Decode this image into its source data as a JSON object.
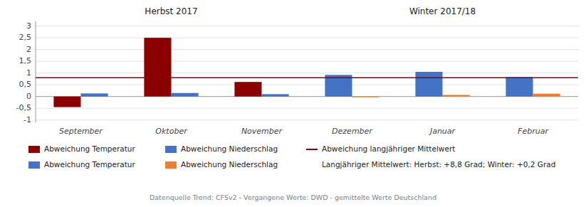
{
  "chart_data": {
    "type": "bar",
    "categories": [
      "September",
      "Oktober",
      "November",
      "Dezember",
      "Januar",
      "Februar"
    ],
    "series": [
      {
        "name": "Abweichung Temperatur",
        "values": [
          -0.45,
          2.5,
          0.62,
          0.92,
          1.05,
          0.83
        ],
        "colors": [
          "#8B0000",
          "#8B0000",
          "#8B0000",
          "#4472C4",
          "#4472C4",
          "#4472C4"
        ]
      },
      {
        "name": "Abweichung Niederschlag",
        "values": [
          0.13,
          0.15,
          0.1,
          -0.03,
          0.07,
          0.12
        ],
        "colors": [
          "#4472C4",
          "#4472C4",
          "#4472C4",
          "#ED7D31",
          "#ED7D31",
          "#ED7D31"
        ]
      }
    ],
    "trend_line": {
      "name": "Abweichung langjähriger Mittelwert",
      "color": "#8B0000",
      "values": [
        0.8,
        0.8
      ]
    },
    "annotations": [
      {
        "text": "Herbst 2017",
        "x": "Oktober"
      },
      {
        "text": "Winter 2017/18",
        "x": "Januar"
      },
      {
        "text": "Langjähriger Mittelwert: Herbst: +8,8 Grad; Winter: +0,2 Grad"
      }
    ],
    "caption": "Datenquelle Trend: CFSv2 - Vergangene Werte: DWD - gemittelte Werte Deutschland",
    "ylim": [
      -1.1,
      3.2
    ],
    "yticks": [
      -1,
      {
        "value": -0.5,
        "label": "-0,5"
      },
      0,
      {
        "value": 0.5,
        "label": "0,5"
      },
      1,
      {
        "value": 1.5,
        "label": "1,5"
      },
      2,
      {
        "value": 2.5,
        "label": "2,5"
      },
      3
    ],
    "grid": true
  }
}
